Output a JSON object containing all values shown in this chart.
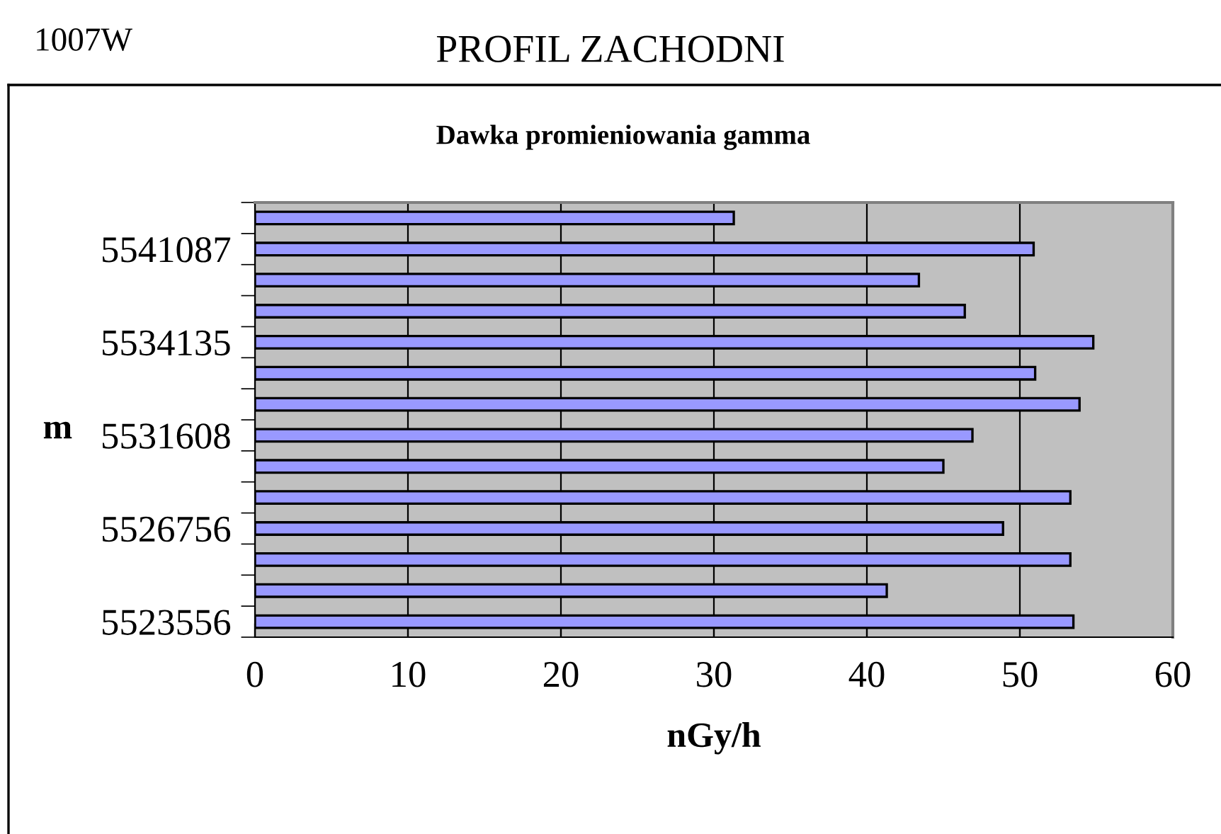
{
  "chart_data": {
    "type": "bar",
    "orientation": "horizontal",
    "title": "PROFIL ZACHODNI",
    "subtitle": "Dawka promieniowania gamma",
    "annotations": [
      "1007W"
    ],
    "xlabel": "nGy/h",
    "ylabel": "m",
    "categories": [
      null,
      "5541087",
      null,
      null,
      "5534135",
      null,
      null,
      "5531608",
      null,
      null,
      "5526756",
      null,
      null,
      "5523556"
    ],
    "values": [
      31.3,
      50.9,
      43.4,
      46.4,
      54.8,
      51.0,
      53.9,
      46.9,
      45.0,
      53.3,
      48.9,
      53.3,
      41.3,
      53.5
    ],
    "color": "#9999ff",
    "xlim": [
      0,
      60
    ],
    "xticks": [
      0,
      10,
      20,
      30,
      40,
      50,
      60
    ],
    "grid": "x",
    "legend": false
  }
}
